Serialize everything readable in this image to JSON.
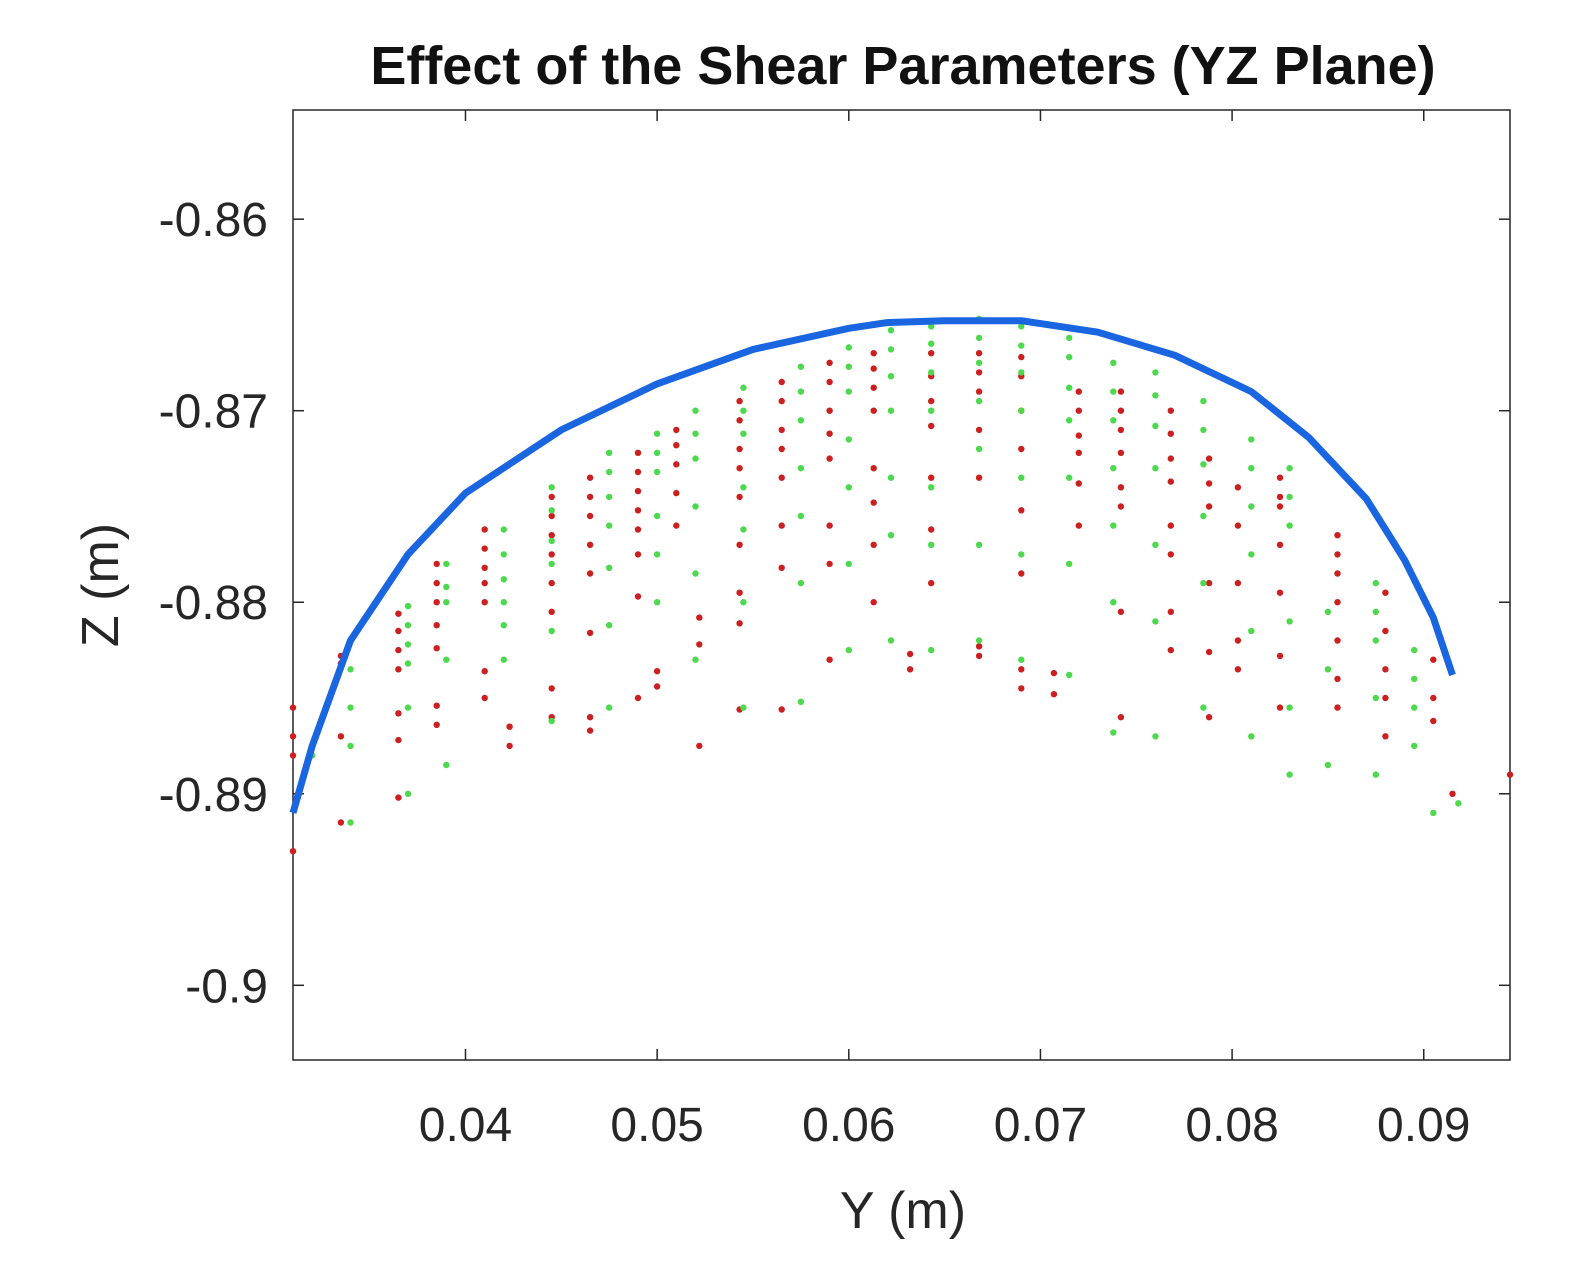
{
  "chart_data": {
    "type": "scatter",
    "title": "Effect of the Shear Parameters (YZ Plane)",
    "xlabel": "Y (m)",
    "ylabel": "Z (m)",
    "xlim": [
      0.031,
      0.0945
    ],
    "ylim": [
      -0.9039,
      -0.8543
    ],
    "grid": false,
    "legend": "none",
    "x_ticks": [
      {
        "value": 0.04,
        "label": "0.04"
      },
      {
        "value": 0.05,
        "label": "0.05"
      },
      {
        "value": 0.06,
        "label": "0.06"
      },
      {
        "value": 0.07,
        "label": "0.07"
      },
      {
        "value": 0.08,
        "label": "0.08"
      },
      {
        "value": 0.09,
        "label": "0.09"
      }
    ],
    "y_ticks": [
      {
        "value": -0.86,
        "label": "-0.86"
      },
      {
        "value": -0.87,
        "label": "-0.87"
      },
      {
        "value": -0.88,
        "label": "-0.88"
      },
      {
        "value": -0.89,
        "label": "-0.89"
      },
      {
        "value": -0.9,
        "label": "-0.9"
      }
    ],
    "series": [
      {
        "name": "boundary",
        "type": "line",
        "color": "#1a66e0",
        "points": [
          [
            0.031,
            -0.891
          ],
          [
            0.032,
            -0.8875
          ],
          [
            0.034,
            -0.882
          ],
          [
            0.037,
            -0.8775
          ],
          [
            0.04,
            -0.8743
          ],
          [
            0.045,
            -0.871
          ],
          [
            0.05,
            -0.8686
          ],
          [
            0.055,
            -0.8668
          ],
          [
            0.06,
            -0.8657
          ],
          [
            0.062,
            -0.8654
          ],
          [
            0.065,
            -0.8653
          ],
          [
            0.069,
            -0.8653
          ],
          [
            0.073,
            -0.8659
          ],
          [
            0.077,
            -0.8671
          ],
          [
            0.081,
            -0.869
          ],
          [
            0.084,
            -0.8714
          ],
          [
            0.087,
            -0.8746
          ],
          [
            0.089,
            -0.8778
          ],
          [
            0.0905,
            -0.8808
          ],
          [
            0.0915,
            -0.8838
          ]
        ]
      },
      {
        "name": "red points",
        "type": "scatter",
        "color": "#cc1f1f",
        "columns": [
          {
            "y": 0.031,
            "z": [
              -0.8855,
              -0.887,
              -0.888,
              -0.893
            ]
          },
          {
            "y": 0.0335,
            "z": [
              -0.8828,
              -0.8832,
              -0.887,
              -0.8915
            ]
          },
          {
            "y": 0.0365,
            "z": [
              -0.8806,
              -0.8815,
              -0.8825,
              -0.8835,
              -0.8858,
              -0.8872,
              -0.8902
            ]
          },
          {
            "y": 0.0385,
            "z": [
              -0.878,
              -0.879,
              -0.88,
              -0.8812,
              -0.8824,
              -0.8854,
              -0.8864
            ]
          },
          {
            "y": 0.041,
            "z": [
              -0.8762,
              -0.8772,
              -0.8782,
              -0.879,
              -0.88,
              -0.8836,
              -0.885
            ]
          },
          {
            "y": 0.0423,
            "z": [
              -0.8865,
              -0.8875
            ]
          },
          {
            "y": 0.0445,
            "z": [
              -0.8745,
              -0.8755,
              -0.8765,
              -0.8775,
              -0.879,
              -0.8805,
              -0.8845,
              -0.886
            ]
          },
          {
            "y": 0.0465,
            "z": [
              -0.8735,
              -0.8745,
              -0.8755,
              -0.877,
              -0.8785,
              -0.8816,
              -0.886,
              -0.8867
            ]
          },
          {
            "y": 0.049,
            "z": [
              -0.8722,
              -0.8732,
              -0.8742,
              -0.8752,
              -0.8762,
              -0.8775,
              -0.8797,
              -0.885
            ]
          },
          {
            "y": 0.05,
            "z": [
              -0.8836,
              -0.8844
            ]
          },
          {
            "y": 0.051,
            "z": [
              -0.871,
              -0.8718,
              -0.8728,
              -0.8743,
              -0.876
            ]
          },
          {
            "y": 0.0522,
            "z": [
              -0.8808,
              -0.8822,
              -0.8875
            ]
          },
          {
            "y": 0.0543,
            "z": [
              -0.8695,
              -0.8705,
              -0.872,
              -0.873,
              -0.8745,
              -0.877,
              -0.8795,
              -0.8811,
              -0.8856
            ]
          },
          {
            "y": 0.0565,
            "z": [
              -0.8685,
              -0.8695,
              -0.871,
              -0.872,
              -0.8735,
              -0.876,
              -0.8782,
              -0.8856
            ]
          },
          {
            "y": 0.059,
            "z": [
              -0.8675,
              -0.8685,
              -0.87,
              -0.8712,
              -0.8725,
              -0.876,
              -0.878,
              -0.883
            ]
          },
          {
            "y": 0.0613,
            "z": [
              -0.867,
              -0.8678,
              -0.8688,
              -0.87,
              -0.873,
              -0.8748,
              -0.877,
              -0.88
            ]
          },
          {
            "y": 0.0632,
            "z": [
              -0.8827,
              -0.8835
            ]
          },
          {
            "y": 0.0643,
            "z": [
              -0.867,
              -0.8682,
              -0.8695,
              -0.8708,
              -0.8735,
              -0.8762,
              -0.879
            ]
          },
          {
            "y": 0.0668,
            "z": [
              -0.867,
              -0.868,
              -0.869,
              -0.871,
              -0.8735,
              -0.8823,
              -0.8828
            ]
          },
          {
            "y": 0.069,
            "z": [
              -0.8672,
              -0.8682,
              -0.87,
              -0.872,
              -0.8752,
              -0.8785,
              -0.8835,
              -0.8845
            ]
          },
          {
            "y": 0.0707,
            "z": [
              -0.8837,
              -0.8848
            ]
          },
          {
            "y": 0.072,
            "z": [
              -0.869,
              -0.87,
              -0.8713,
              -0.8722,
              -0.8738,
              -0.876
            ]
          },
          {
            "y": 0.0742,
            "z": [
              -0.869,
              -0.87,
              -0.871,
              -0.8722,
              -0.874,
              -0.875,
              -0.8805,
              -0.886
            ]
          },
          {
            "y": 0.0768,
            "z": [
              -0.87,
              -0.8712,
              -0.8725,
              -0.8737,
              -0.876,
              -0.8775,
              -0.8805,
              -0.8825
            ]
          },
          {
            "y": 0.0788,
            "z": [
              -0.8725,
              -0.8738,
              -0.875,
              -0.879,
              -0.8826,
              -0.886
            ]
          },
          {
            "y": 0.0803,
            "z": [
              -0.874,
              -0.876,
              -0.879,
              -0.882,
              -0.8835
            ]
          },
          {
            "y": 0.0825,
            "z": [
              -0.8735,
              -0.8745,
              -0.875,
              -0.877,
              -0.8795,
              -0.8828,
              -0.8855
            ]
          },
          {
            "y": 0.0855,
            "z": [
              -0.8765,
              -0.8775,
              -0.8785,
              -0.88,
              -0.882,
              -0.884,
              -0.8855
            ]
          },
          {
            "y": 0.088,
            "z": [
              -0.8795,
              -0.8815,
              -0.8835,
              -0.885,
              -0.887
            ]
          },
          {
            "y": 0.0905,
            "z": [
              -0.883,
              -0.885,
              -0.8862
            ]
          },
          {
            "y": 0.0915,
            "z": [
              -0.89
            ]
          },
          {
            "y": 0.0945,
            "z": [
              -0.889
            ]
          }
        ]
      },
      {
        "name": "green points",
        "type": "scatter",
        "color": "#4dd94d",
        "columns": [
          {
            "y": 0.032,
            "z": [
              -0.888
            ]
          },
          {
            "y": 0.034,
            "z": [
              -0.8835,
              -0.8855,
              -0.8875,
              -0.8915
            ]
          },
          {
            "y": 0.037,
            "z": [
              -0.8802,
              -0.8812,
              -0.8822,
              -0.8832,
              -0.8855,
              -0.89
            ]
          },
          {
            "y": 0.039,
            "z": [
              -0.878,
              -0.8792,
              -0.88,
              -0.883,
              -0.8885
            ]
          },
          {
            "y": 0.042,
            "z": [
              -0.8762,
              -0.8775,
              -0.8788,
              -0.88,
              -0.8812,
              -0.883
            ]
          },
          {
            "y": 0.0445,
            "z": [
              -0.874,
              -0.8752,
              -0.8768,
              -0.878,
              -0.8815,
              -0.8862
            ]
          },
          {
            "y": 0.0475,
            "z": [
              -0.8722,
              -0.8732,
              -0.8745,
              -0.876,
              -0.8782,
              -0.8812,
              -0.8855
            ]
          },
          {
            "y": 0.05,
            "z": [
              -0.8712,
              -0.8722,
              -0.8732,
              -0.8755,
              -0.8775,
              -0.88
            ]
          },
          {
            "y": 0.052,
            "z": [
              -0.87,
              -0.8712,
              -0.8725,
              -0.875,
              -0.8785,
              -0.883
            ]
          },
          {
            "y": 0.0545,
            "z": [
              -0.8688,
              -0.87,
              -0.8712,
              -0.874,
              -0.8762,
              -0.88,
              -0.8855
            ]
          },
          {
            "y": 0.0575,
            "z": [
              -0.8677,
              -0.869,
              -0.8705,
              -0.873,
              -0.8755,
              -0.879,
              -0.8852
            ]
          },
          {
            "y": 0.06,
            "z": [
              -0.8667,
              -0.8677,
              -0.869,
              -0.8715,
              -0.874,
              -0.878,
              -0.8825
            ]
          },
          {
            "y": 0.0622,
            "z": [
              -0.8658,
              -0.8668,
              -0.8682,
              -0.87,
              -0.8735,
              -0.8765,
              -0.882
            ]
          },
          {
            "y": 0.0643,
            "z": [
              -0.8656,
              -0.8665,
              -0.868,
              -0.87,
              -0.874,
              -0.877,
              -0.8825
            ]
          },
          {
            "y": 0.0668,
            "z": [
              -0.8652,
              -0.8662,
              -0.8675,
              -0.8695,
              -0.872,
              -0.877,
              -0.882
            ]
          },
          {
            "y": 0.069,
            "z": [
              -0.8656,
              -0.8666,
              -0.868,
              -0.87,
              -0.8735,
              -0.8775,
              -0.883
            ]
          },
          {
            "y": 0.0715,
            "z": [
              -0.8662,
              -0.8672,
              -0.8688,
              -0.8705,
              -0.8735,
              -0.878,
              -0.8838
            ]
          },
          {
            "y": 0.0738,
            "z": [
              -0.8675,
              -0.869,
              -0.8705,
              -0.873,
              -0.876,
              -0.88,
              -0.8868
            ]
          },
          {
            "y": 0.076,
            "z": [
              -0.868,
              -0.8692,
              -0.8708,
              -0.873,
              -0.877,
              -0.881,
              -0.887
            ]
          },
          {
            "y": 0.0785,
            "z": [
              -0.8695,
              -0.871,
              -0.8728,
              -0.8755,
              -0.879,
              -0.8855
            ]
          },
          {
            "y": 0.081,
            "z": [
              -0.8715,
              -0.873,
              -0.875,
              -0.8775,
              -0.8815,
              -0.887
            ]
          },
          {
            "y": 0.083,
            "z": [
              -0.873,
              -0.8745,
              -0.876,
              -0.881,
              -0.8855,
              -0.889
            ]
          },
          {
            "y": 0.085,
            "z": [
              -0.8805,
              -0.8835,
              -0.8885
            ]
          },
          {
            "y": 0.0875,
            "z": [
              -0.879,
              -0.8805,
              -0.882,
              -0.885,
              -0.889
            ]
          },
          {
            "y": 0.0895,
            "z": [
              -0.8825,
              -0.884,
              -0.8855,
              -0.8875
            ]
          },
          {
            "y": 0.0905,
            "z": [
              -0.891
            ]
          },
          {
            "y": 0.0918,
            "z": [
              -0.8905
            ]
          }
        ]
      }
    ]
  }
}
